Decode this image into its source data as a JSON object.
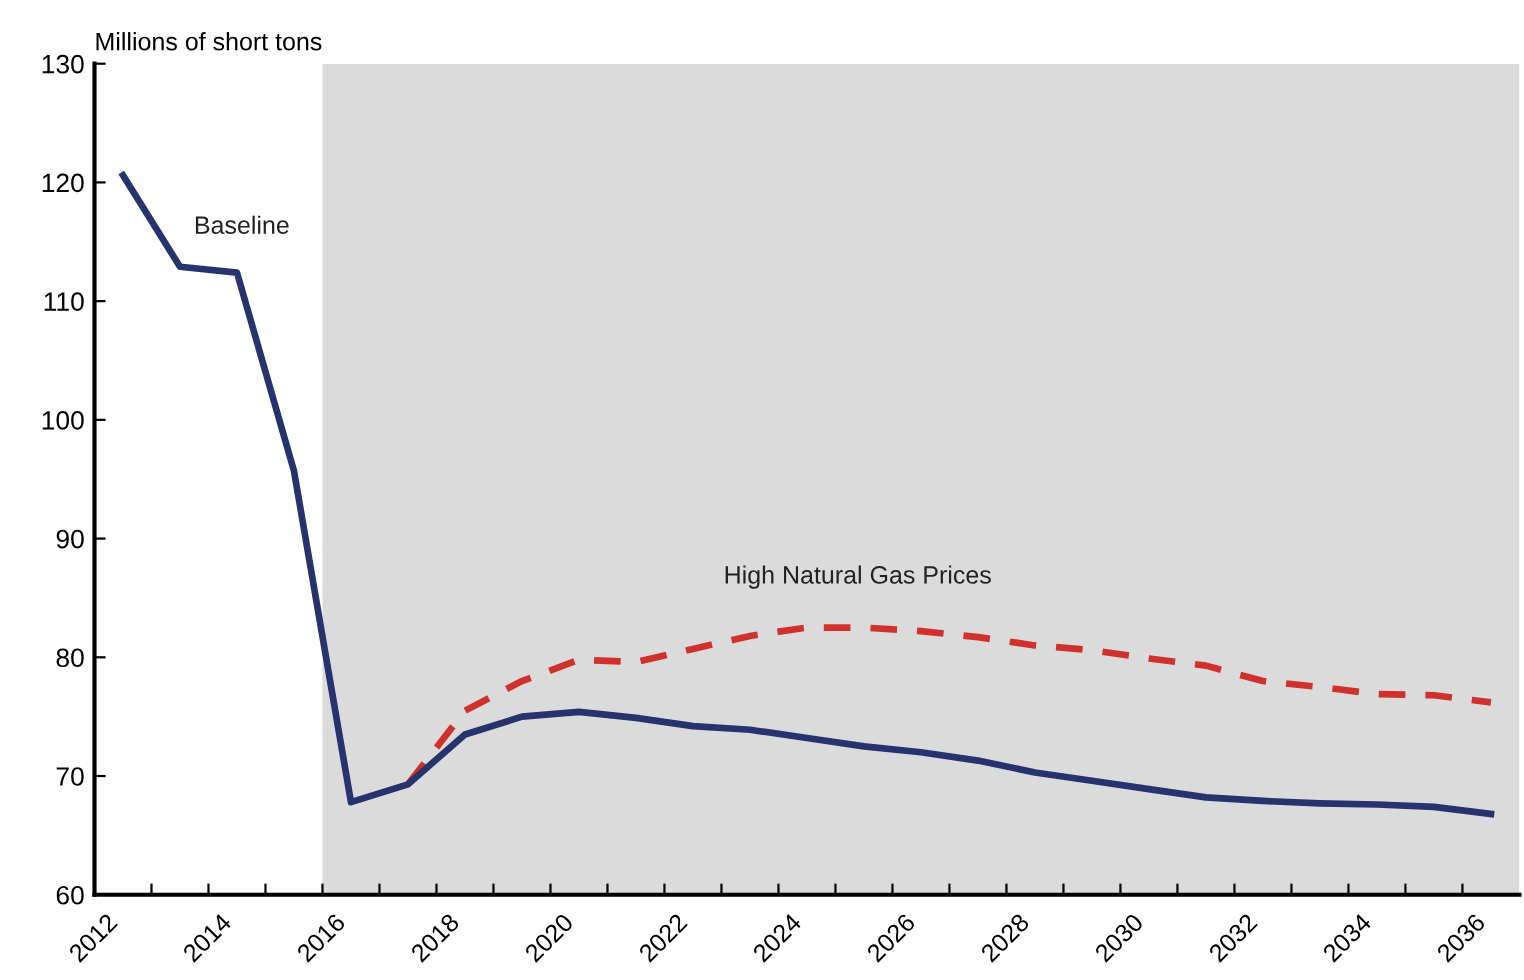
{
  "chart_data": {
    "type": "line",
    "ylabel": "Millions of short tons",
    "xlim": [
      2012,
      2037
    ],
    "ylim": [
      60,
      130
    ],
    "xticks": [
      2012,
      {
        "value": 2013,
        "label": null
      },
      2014,
      {
        "value": 2015,
        "label": null
      },
      2016,
      {
        "value": 2017,
        "label": null
      },
      2018,
      {
        "value": 2019,
        "label": null
      },
      2020,
      {
        "value": 2021,
        "label": null
      },
      2022,
      {
        "value": 2023,
        "label": null
      },
      2024,
      {
        "value": 2025,
        "label": null
      },
      2026,
      {
        "value": 2027,
        "label": null
      },
      2028,
      {
        "value": 2029,
        "label": null
      },
      2030,
      {
        "value": 2031,
        "label": null
      },
      2032,
      {
        "value": 2033,
        "label": null
      },
      2034,
      {
        "value": 2035,
        "label": null
      },
      2036
    ],
    "yticks": [
      60,
      70,
      80,
      90,
      100,
      110,
      120,
      130
    ],
    "grid": false,
    "bands": [
      {
        "axis": "x",
        "from": 2016,
        "to": 2037,
        "label": null,
        "color": "#dcdbdb"
      }
    ],
    "series": [
      {
        "name": "High Natural Gas Prices",
        "color": "#d0312d",
        "line_style": "dashed",
        "x": [
          2017.5,
          2018.5,
          2019.5,
          2020.5,
          2021.5,
          2022.5,
          2023.5,
          2024.5,
          2025.5,
          2026.5,
          2027.5,
          2028.5,
          2029.5,
          2030.5,
          2031.5,
          2032.5,
          2033.5,
          2034.5,
          2035.5,
          2036.5
        ],
        "values": [
          69.3,
          75.5,
          78.0,
          79.8,
          79.6,
          80.7,
          81.8,
          82.5,
          82.5,
          82.2,
          81.7,
          81.0,
          80.6,
          79.9,
          79.3,
          78.0,
          77.5,
          76.9,
          76.8,
          76.2
        ]
      },
      {
        "name": "Baseline",
        "color": "#26336e",
        "line_style": "solid",
        "x": [
          2012.5,
          2013.5,
          2014.5,
          2015.5,
          2016.5,
          2017.5,
          2018.5,
          2019.5,
          2020.5,
          2021.5,
          2022.5,
          2023.5,
          2024.5,
          2025.5,
          2026.5,
          2027.5,
          2028.5,
          2029.5,
          2030.5,
          2031.5,
          2032.5,
          2033.5,
          2034.5,
          2035.5,
          2036.5
        ],
        "values": [
          120.6,
          112.9,
          112.4,
          95.7,
          67.8,
          69.3,
          73.5,
          75.0,
          75.4,
          74.9,
          74.2,
          73.9,
          73.2,
          72.5,
          72.0,
          71.3,
          70.3,
          69.6,
          68.9,
          68.2,
          67.9,
          67.7,
          67.6,
          67.4,
          66.8
        ]
      }
    ]
  }
}
